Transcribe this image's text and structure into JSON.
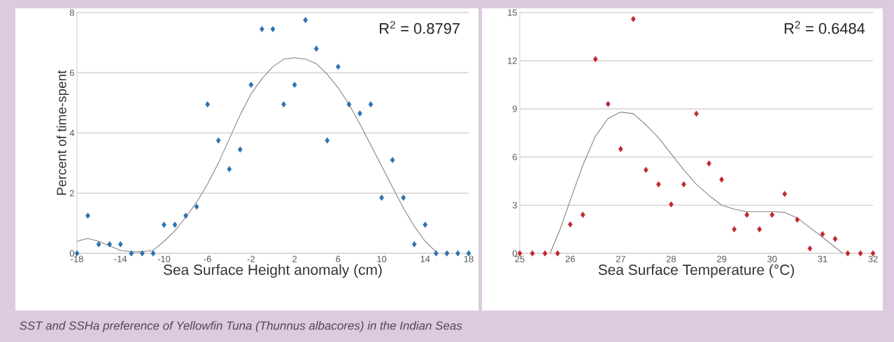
{
  "chart_data": [
    {
      "type": "scatter",
      "xlabel": "Sea Surface Height anomaly (cm)",
      "ylabel": "Percent of time-spent",
      "annotations": [
        "R$^{2}$ = 0.8797",
        "SST and SSHa preference of Yellowfin Tuna (Thunnus albacores) in the Indian Seas"
      ],
      "xlim": [
        -18,
        18
      ],
      "ylim": [
        0,
        8
      ],
      "xticks": [
        -18,
        -14,
        -10,
        -6,
        -2,
        2,
        6,
        10,
        14,
        18
      ],
      "yticks": [
        0,
        2,
        4,
        6,
        8
      ],
      "grid": "y",
      "series": [
        {
          "marker": "diamond",
          "color": "#2a72b2",
          "x": [
            -18,
            -17,
            -16,
            -15,
            -14,
            -13,
            -12,
            -11,
            -10,
            -9,
            -8,
            -7,
            -6,
            -5,
            -4,
            -3,
            -2,
            -1,
            0,
            1,
            2,
            3,
            4,
            5,
            6,
            7,
            8,
            9,
            10,
            11,
            12,
            13,
            14,
            15,
            16,
            17,
            18
          ],
          "values": [
            0,
            1.25,
            0.3,
            0.3,
            0.3,
            0,
            0,
            0,
            0.95,
            0.95,
            1.25,
            1.55,
            4.95,
            3.75,
            2.8,
            3.45,
            5.6,
            7.45,
            7.45,
            4.95,
            5.6,
            7.75,
            6.8,
            3.75,
            6.2,
            4.95,
            4.65,
            4.95,
            1.85,
            3.1,
            1.85,
            0.3,
            0.95,
            0,
            0,
            0,
            0
          ]
        },
        {
          "type": "line",
          "marker": "none",
          "line_style": "solid",
          "color": "#8c8080",
          "x": [
            -18,
            -17,
            -16,
            -15,
            -14,
            -13,
            -12,
            -11,
            -10,
            -9,
            -8,
            -7,
            -6,
            -5,
            -4,
            -3,
            -2,
            -1,
            0,
            1,
            2,
            3,
            4,
            5,
            6,
            7,
            8,
            9,
            10,
            11,
            12,
            13,
            14,
            15
          ],
          "values": [
            0.4,
            0.5,
            0.4,
            0.25,
            0.1,
            0.05,
            0.05,
            0.1,
            0.4,
            0.75,
            1.2,
            1.7,
            2.3,
            3.0,
            3.8,
            4.6,
            5.3,
            5.8,
            6.2,
            6.45,
            6.5,
            6.45,
            6.3,
            5.95,
            5.5,
            4.95,
            4.3,
            3.6,
            2.9,
            2.2,
            1.5,
            0.9,
            0.4,
            0.05
          ]
        }
      ]
    },
    {
      "type": "scatter",
      "xlabel": "Sea Surface Temperature (°C)",
      "annotations": [
        "R$^{2}$ = 0.6484"
      ],
      "xlim": [
        25,
        32
      ],
      "ylim": [
        0,
        15
      ],
      "xticks": [
        25,
        26,
        27,
        28,
        29,
        30,
        31,
        32
      ],
      "yticks": [
        0,
        3,
        6,
        9,
        12,
        15
      ],
      "grid": "y",
      "series": [
        {
          "marker": "diamond",
          "color": "#c0282c",
          "x": [
            25,
            25.25,
            25.5,
            25.75,
            26,
            26.25,
            26.5,
            26.75,
            27,
            27.25,
            27.5,
            27.75,
            28,
            28.25,
            28.5,
            28.75,
            29,
            29.25,
            29.5,
            29.75,
            30,
            30.25,
            30.5,
            30.75,
            31,
            31.25,
            31.5,
            31.75,
            32
          ],
          "values": [
            0,
            0,
            0,
            0,
            1.8,
            2.4,
            12.1,
            9.3,
            6.5,
            14.6,
            5.2,
            4.3,
            3.05,
            4.3,
            8.7,
            5.6,
            4.6,
            1.5,
            2.4,
            1.5,
            2.4,
            3.7,
            2.1,
            0.3,
            1.2,
            0.9,
            0,
            0,
            0
          ]
        },
        {
          "type": "line",
          "marker": "none",
          "line_style": "solid",
          "color": "#8c8080",
          "x": [
            25.6,
            25.8,
            26,
            26.25,
            26.5,
            26.75,
            27,
            27.25,
            27.5,
            27.75,
            28,
            28.25,
            28.5,
            28.75,
            29,
            29.25,
            29.5,
            29.75,
            30,
            30.25,
            30.5,
            30.75,
            31,
            31.2,
            31.4
          ],
          "values": [
            0,
            1.5,
            3.3,
            5.5,
            7.3,
            8.4,
            8.8,
            8.7,
            8.0,
            7.2,
            6.2,
            5.2,
            4.3,
            3.6,
            3.0,
            2.75,
            2.6,
            2.6,
            2.6,
            2.55,
            2.2,
            1.6,
            1.0,
            0.5,
            0
          ]
        }
      ]
    }
  ]
}
